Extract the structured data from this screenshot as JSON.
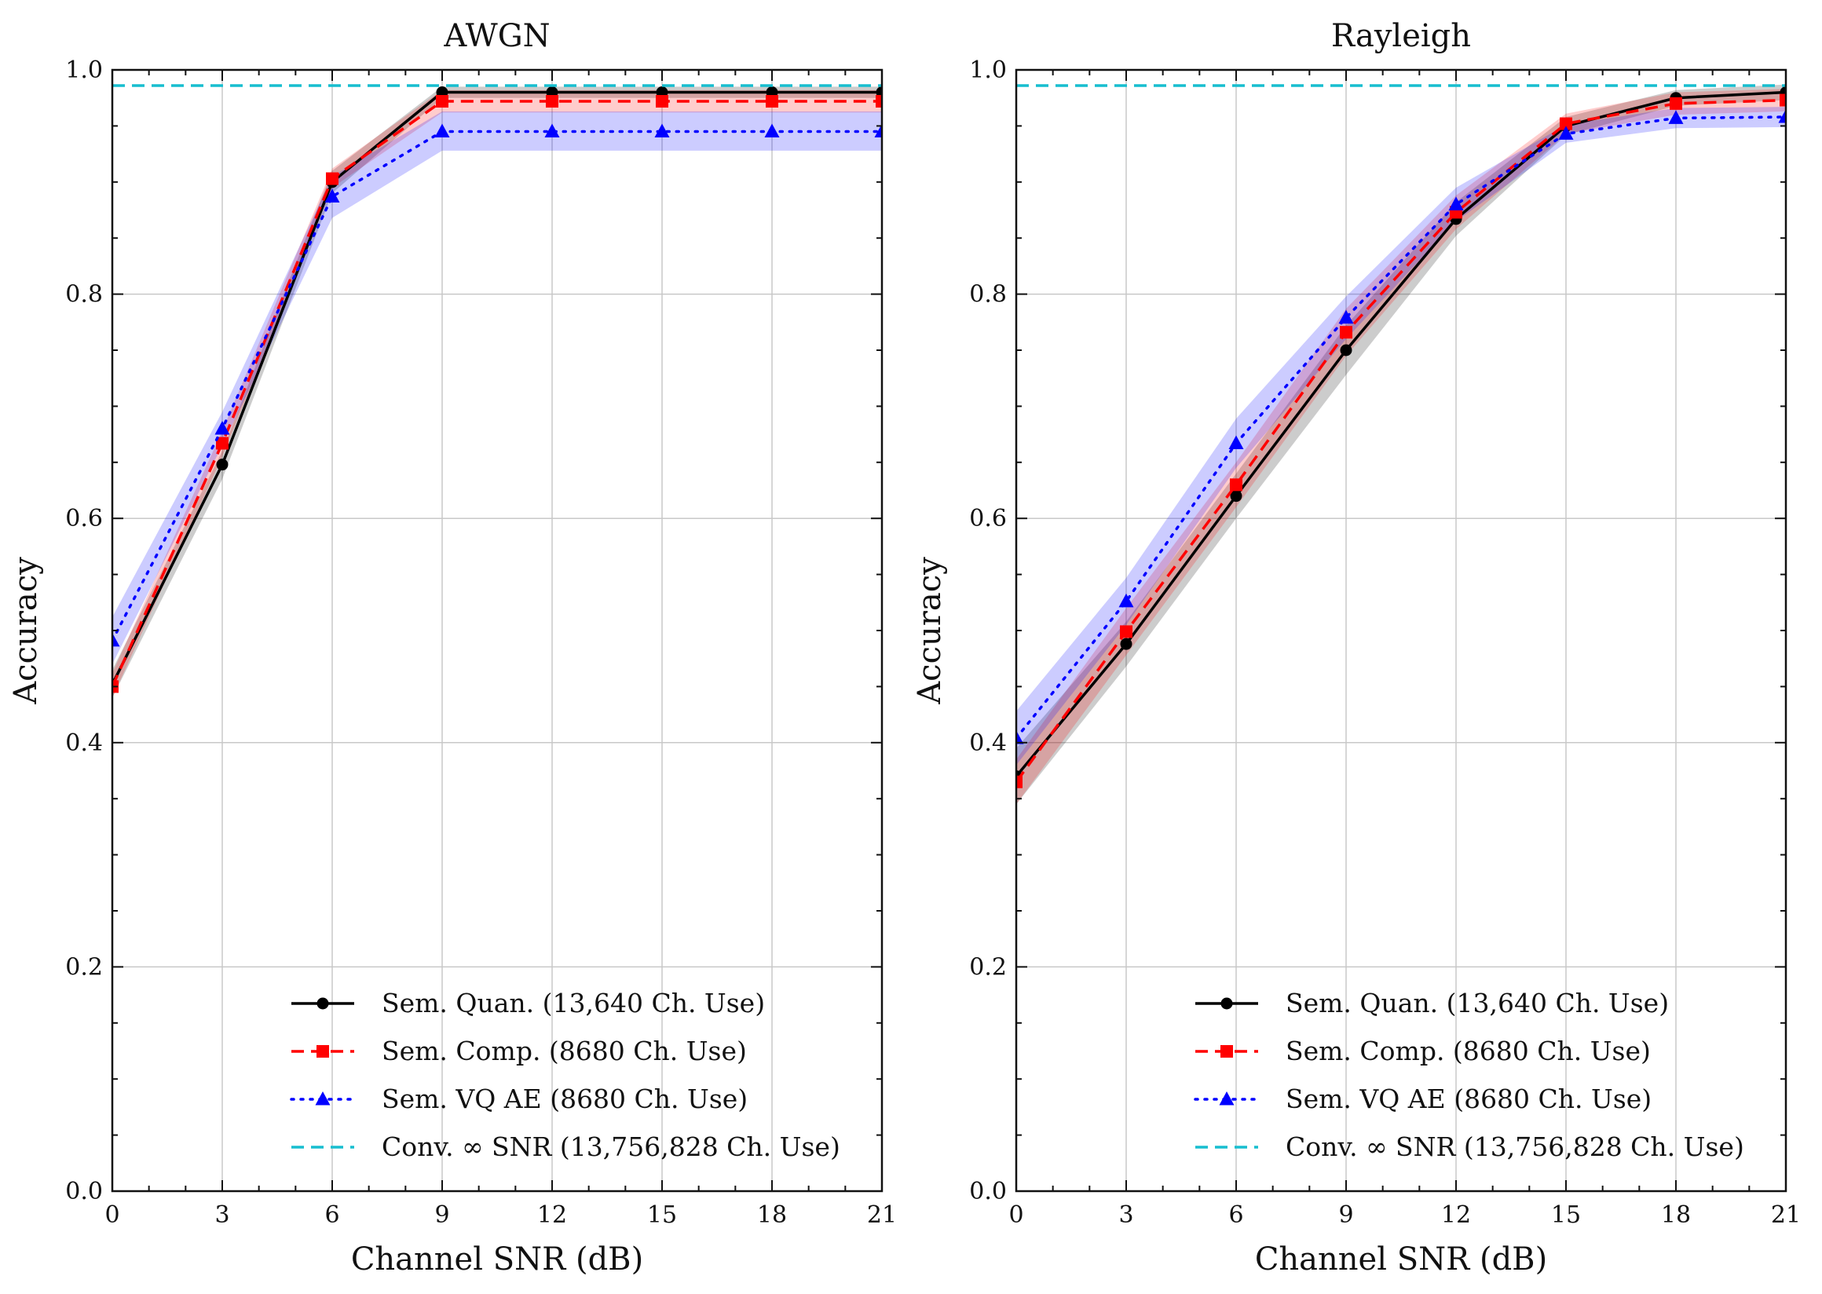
{
  "chart_data": [
    {
      "type": "line",
      "title": "AWGN",
      "xlabel": "Channel SNR (dB)",
      "ylabel": "Accuracy",
      "x": [
        0,
        3,
        6,
        9,
        12,
        15,
        18,
        21
      ],
      "xticks": [
        "0",
        "3",
        "6",
        "9",
        "12",
        "15",
        "18",
        "21"
      ],
      "yticks": [
        "0.0",
        "0.2",
        "0.4",
        "0.6",
        "0.8",
        "1.0"
      ],
      "xlim": [
        0,
        21
      ],
      "ylim": [
        0.0,
        1.0
      ],
      "grid": true,
      "legend_position": "lower-right",
      "series": [
        {
          "name": "Sem. Quan. (13,640 Ch. Use)",
          "color": "#000000",
          "style": "solid",
          "marker": "circle",
          "values": [
            0.452,
            0.648,
            0.9,
            0.98,
            0.98,
            0.98,
            0.98,
            0.98
          ],
          "band_lower": [
            0.44,
            0.635,
            0.89,
            0.975,
            0.975,
            0.975,
            0.975,
            0.975
          ],
          "band_upper": [
            0.465,
            0.66,
            0.91,
            0.985,
            0.985,
            0.985,
            0.985,
            0.985
          ]
        },
        {
          "name": "Sem. Comp. (8680 Ch. Use)",
          "color": "#ff0000",
          "style": "dashed",
          "marker": "square",
          "values": [
            0.45,
            0.667,
            0.903,
            0.972,
            0.972,
            0.972,
            0.972,
            0.972
          ],
          "band_lower": [
            0.44,
            0.655,
            0.895,
            0.962,
            0.962,
            0.962,
            0.962,
            0.962
          ],
          "band_upper": [
            0.462,
            0.678,
            0.912,
            0.982,
            0.982,
            0.982,
            0.982,
            0.982
          ]
        },
        {
          "name": "Sem. VQ AE (8680 Ch. Use)",
          "color": "#0000ff",
          "style": "dotted",
          "marker": "triangle",
          "values": [
            0.491,
            0.68,
            0.887,
            0.945,
            0.945,
            0.945,
            0.945,
            0.945
          ],
          "band_lower": [
            0.47,
            0.665,
            0.868,
            0.928,
            0.928,
            0.928,
            0.928,
            0.928
          ],
          "band_upper": [
            0.512,
            0.695,
            0.905,
            0.963,
            0.963,
            0.963,
            0.963,
            0.963
          ]
        },
        {
          "name": "Conv. ∞ SNR (13,756,828 Ch. Use)",
          "color": "#17becf",
          "style": "dashed",
          "marker": "none",
          "values": [
            0.986,
            0.986,
            0.986,
            0.986,
            0.986,
            0.986,
            0.986,
            0.986
          ]
        }
      ]
    },
    {
      "type": "line",
      "title": "Rayleigh",
      "xlabel": "Channel SNR (dB)",
      "ylabel": "Accuracy",
      "x": [
        0,
        3,
        6,
        9,
        12,
        15,
        18,
        21
      ],
      "xticks": [
        "0",
        "3",
        "6",
        "9",
        "12",
        "15",
        "18",
        "21"
      ],
      "yticks": [
        "0.0",
        "0.2",
        "0.4",
        "0.6",
        "0.8",
        "1.0"
      ],
      "xlim": [
        0,
        21
      ],
      "ylim": [
        0.0,
        1.0
      ],
      "grid": true,
      "legend_position": "lower-right",
      "series": [
        {
          "name": "Sem. Quan. (13,640 Ch. Use)",
          "color": "#000000",
          "style": "solid",
          "marker": "circle",
          "values": [
            0.37,
            0.488,
            0.62,
            0.75,
            0.867,
            0.95,
            0.975,
            0.98
          ],
          "band_lower": [
            0.345,
            0.468,
            0.6,
            0.728,
            0.852,
            0.942,
            0.968,
            0.973
          ],
          "band_upper": [
            0.395,
            0.508,
            0.64,
            0.772,
            0.882,
            0.958,
            0.982,
            0.987
          ]
        },
        {
          "name": "Sem. Comp. (8680 Ch. Use)",
          "color": "#ff0000",
          "style": "dashed",
          "marker": "square",
          "values": [
            0.365,
            0.499,
            0.63,
            0.766,
            0.873,
            0.952,
            0.97,
            0.973
          ],
          "band_lower": [
            0.345,
            0.478,
            0.61,
            0.745,
            0.858,
            0.943,
            0.96,
            0.963
          ],
          "band_upper": [
            0.385,
            0.52,
            0.65,
            0.787,
            0.888,
            0.961,
            0.98,
            0.983
          ]
        },
        {
          "name": "Sem. VQ AE (8680 Ch. Use)",
          "color": "#0000ff",
          "style": "dotted",
          "marker": "triangle",
          "values": [
            0.404,
            0.526,
            0.667,
            0.779,
            0.88,
            0.943,
            0.957,
            0.958
          ],
          "band_lower": [
            0.38,
            0.505,
            0.645,
            0.76,
            0.865,
            0.935,
            0.948,
            0.949
          ],
          "band_upper": [
            0.428,
            0.547,
            0.689,
            0.798,
            0.895,
            0.951,
            0.966,
            0.967
          ]
        },
        {
          "name": "Conv. ∞ SNR (13,756,828 Ch. Use)",
          "color": "#17becf",
          "style": "dashed",
          "marker": "none",
          "values": [
            0.986,
            0.986,
            0.986,
            0.986,
            0.986,
            0.986,
            0.986,
            0.986
          ]
        }
      ]
    }
  ]
}
